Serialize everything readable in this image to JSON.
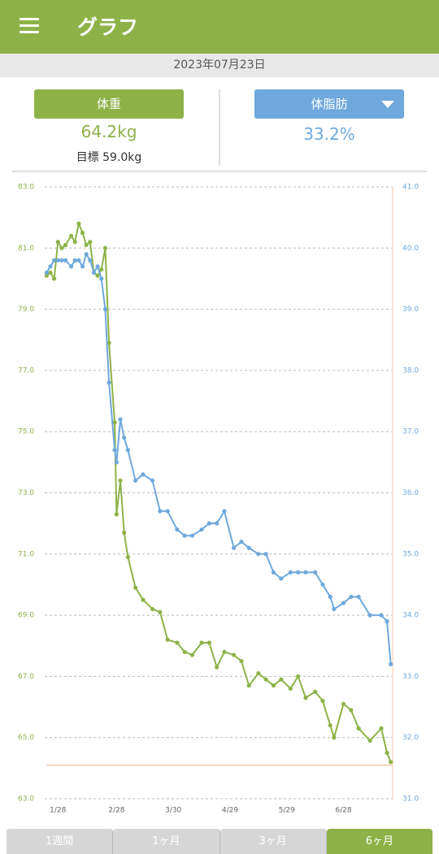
{
  "header": {
    "title": "グラフ"
  },
  "date": "2023年07月23日",
  "weight": {
    "value": "64.2kg",
    "target": "目標 59.0kg"
  },
  "fat": {
    "value": "33.2%"
  },
  "chart_data": {
    "type": "line",
    "x": [
      22,
      24,
      26,
      28,
      30,
      32,
      35,
      37,
      39,
      41,
      43,
      45,
      47,
      49,
      51,
      53,
      55,
      58,
      59,
      61,
      63,
      65,
      69,
      73,
      78,
      82,
      86,
      91,
      95,
      99,
      104,
      108,
      112,
      116,
      121,
      125,
      129,
      134,
      138,
      142,
      146,
      151,
      155,
      159,
      164,
      168,
      172,
      174,
      179,
      183,
      187,
      193,
      199,
      202,
      204
    ],
    "xlim": [
      21,
      205
    ],
    "xticks": [
      {
        "value": 28,
        "label": "1/28"
      },
      {
        "value": 59,
        "label": "2/28"
      },
      {
        "value": 89,
        "label": "3/30"
      },
      {
        "value": 119,
        "label": "4/29"
      },
      {
        "value": 149,
        "label": "5/29"
      },
      {
        "value": 179,
        "label": "6/28"
      }
    ],
    "ylim": [
      63,
      83
    ],
    "yticks": [
      {
        "value": 83,
        "label": "83.0"
      },
      {
        "value": 81,
        "label": "81.0"
      },
      {
        "value": 79,
        "label": "79.0"
      },
      {
        "value": 77,
        "label": "77.0"
      },
      {
        "value": 75,
        "label": "75.0"
      },
      {
        "value": 73,
        "label": "73.0"
      },
      {
        "value": 71,
        "label": "71.0"
      },
      {
        "value": 69,
        "label": "69.0"
      },
      {
        "value": 67,
        "label": "67.0"
      },
      {
        "value": 65,
        "label": "65.0"
      },
      {
        "value": 63,
        "label": "63.0"
      }
    ],
    "y2lim": [
      31,
      41
    ],
    "y2ticks": [
      {
        "value": 41,
        "label": "41.0"
      },
      {
        "value": 40,
        "label": "40.0"
      },
      {
        "value": 39,
        "label": "39.0"
      },
      {
        "value": 38,
        "label": "38.0"
      },
      {
        "value": 37,
        "label": "37.0"
      },
      {
        "value": 36,
        "label": "36.0"
      },
      {
        "value": 35,
        "label": "35.0"
      },
      {
        "value": 34,
        "label": "34.0"
      },
      {
        "value": 33,
        "label": "33.0"
      },
      {
        "value": 32,
        "label": "32.0"
      },
      {
        "value": 31,
        "label": "31.0"
      }
    ],
    "grid": true,
    "target_line": 64.1,
    "target_color": "#f7c8a8",
    "series": [
      {
        "name": "体重",
        "color": "#8db348",
        "axis": "y",
        "values": [
          80.1,
          80.2,
          80.0,
          81.2,
          81.0,
          81.1,
          81.4,
          81.2,
          81.8,
          81.5,
          81.1,
          81.2,
          80.2,
          80.1,
          80.3,
          81.0,
          77.9,
          75.3,
          72.3,
          73.4,
          71.7,
          70.9,
          69.9,
          69.5,
          69.2,
          69.1,
          68.2,
          68.1,
          67.8,
          67.7,
          68.1,
          68.1,
          67.3,
          67.8,
          67.7,
          67.5,
          66.7,
          67.1,
          66.9,
          66.7,
          66.9,
          66.6,
          67.0,
          66.3,
          66.5,
          66.2,
          65.4,
          65.0,
          66.1,
          65.9,
          65.3,
          64.9,
          65.3,
          64.5,
          64.2
        ]
      },
      {
        "name": "体脂肪",
        "color": "#6fa8dc",
        "axis": "y2",
        "values": [
          39.6,
          39.7,
          39.8,
          39.8,
          39.8,
          39.8,
          39.7,
          39.8,
          39.8,
          39.7,
          39.9,
          39.8,
          39.6,
          39.7,
          39.5,
          39.0,
          37.8,
          36.7,
          36.5,
          37.2,
          36.9,
          36.7,
          36.2,
          36.3,
          36.2,
          35.7,
          35.7,
          35.4,
          35.3,
          35.3,
          35.4,
          35.5,
          35.5,
          35.7,
          35.1,
          35.2,
          35.1,
          35.0,
          35.0,
          34.7,
          34.6,
          34.7,
          34.7,
          34.7,
          34.7,
          34.5,
          34.3,
          34.1,
          34.2,
          34.3,
          34.3,
          34.0,
          34.0,
          33.9,
          33.2
        ]
      }
    ]
  },
  "tabs": [
    "1週間",
    "1ヶ月",
    "3ヶ月",
    "6ヶ月"
  ]
}
